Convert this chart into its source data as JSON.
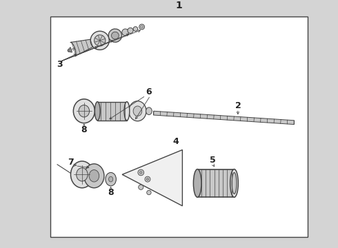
{
  "bg_color": "#d4d4d4",
  "box_color": "#ffffff",
  "line_color": "#444444",
  "dark_color": "#222222",
  "gray1": "#b0b0b0",
  "gray2": "#c8c8c8",
  "gray3": "#e0e0e0",
  "gray4": "#f0f0f0",
  "figsize": [
    4.9,
    3.6
  ],
  "dpi": 100,
  "labels": {
    "1": "1",
    "2": "2",
    "3": "3",
    "4": "4",
    "5": "5",
    "6": "6",
    "7": "7",
    "8": "8"
  }
}
